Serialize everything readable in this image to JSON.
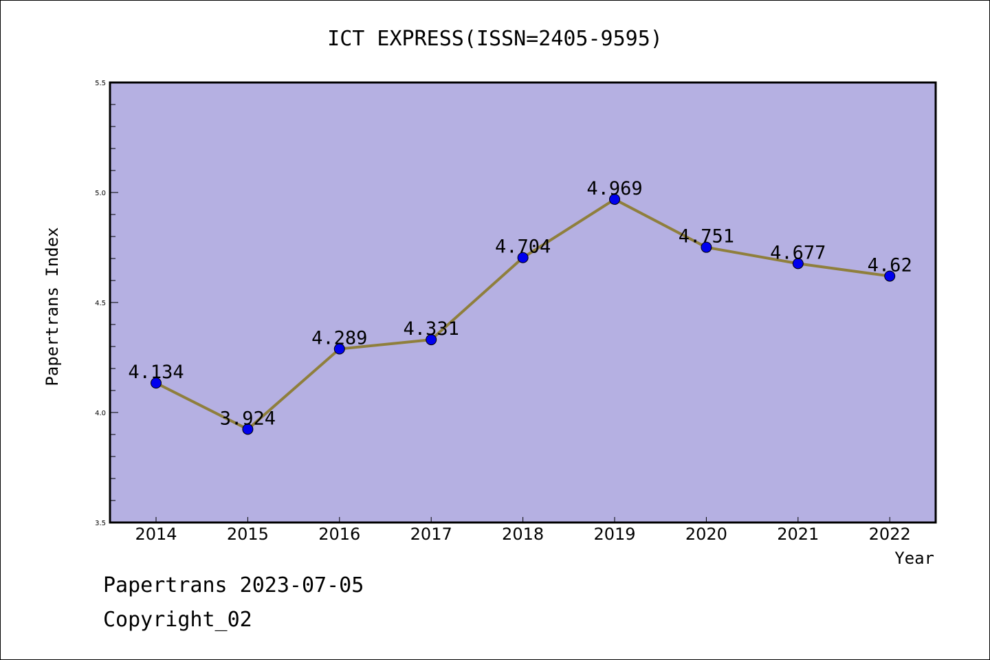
{
  "footer": {
    "line1": "Papertrans 2023-07-05",
    "line2": "Copyright_02"
  },
  "colors": {
    "plot_background": "#b5b0e2",
    "line": "#8f7f3c",
    "marker": "#0000ee"
  },
  "chart_data": {
    "type": "line",
    "title": "ICT EXPRESS(ISSN=2405-9595)",
    "xlabel": "Year",
    "ylabel": "Papertrans Index",
    "categories": [
      "2014",
      "2015",
      "2016",
      "2017",
      "2018",
      "2019",
      "2020",
      "2021",
      "2022"
    ],
    "series": [
      {
        "values": [
          4.134,
          3.924,
          4.289,
          4.331,
          4.704,
          4.969,
          4.751,
          4.677,
          4.62
        ],
        "labels": [
          "4.134",
          "3.924",
          "4.289",
          "4.331",
          "4.704",
          "4.969",
          "4.751",
          "4.677",
          "4.62"
        ]
      }
    ],
    "ylim": [
      3.5,
      5.5
    ],
    "yticks": [
      "3.5",
      "4.0",
      "4.5",
      "5.0",
      "5.5"
    ],
    "grid": false,
    "legend": "none"
  }
}
